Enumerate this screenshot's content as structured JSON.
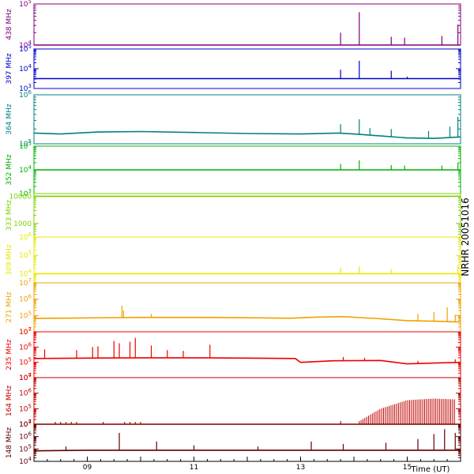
{
  "chart_data": {
    "type": "line",
    "side_label": "NRHR 20051016",
    "x_axis": {
      "label": "Time (UT)",
      "range_hours": [
        8.0,
        16.0
      ],
      "tick_labels": [
        "09",
        "11",
        "13",
        "15"
      ],
      "tick_hours": [
        9,
        11,
        13,
        15
      ],
      "grid": false
    },
    "panels": [
      {
        "freq_label": "438 MHz",
        "color": "#800080",
        "y_scale": "log",
        "ylim_exp": [
          4,
          5
        ],
        "tick_labels": [
          {
            "exp": 5,
            "text": "10^5"
          },
          {
            "exp": 4,
            "text": "10^4"
          }
        ],
        "baseline_exp": 4.0,
        "series": [
          [
            8.0,
            4.0
          ],
          [
            16.0,
            4.0
          ]
        ],
        "spikes": [
          [
            13.75,
            4.3
          ],
          [
            14.1,
            4.8
          ],
          [
            14.7,
            4.2
          ],
          [
            14.95,
            4.18
          ],
          [
            15.65,
            4.22
          ],
          [
            15.95,
            4.5
          ]
        ]
      },
      {
        "freq_label": "397 MHz",
        "color": "#0000cd",
        "y_scale": "log",
        "ylim_exp": [
          3,
          5
        ],
        "tick_labels": [
          {
            "exp": 5,
            "text": "10^5"
          },
          {
            "exp": 4,
            "text": "10^4"
          },
          {
            "exp": 3,
            "text": "10^3"
          }
        ],
        "baseline_exp": 3.5,
        "series": [
          [
            8.0,
            3.5
          ],
          [
            16.0,
            3.5
          ]
        ],
        "spikes": [
          [
            13.75,
            3.95
          ],
          [
            14.1,
            4.4
          ],
          [
            14.7,
            3.9
          ],
          [
            15.0,
            3.6
          ]
        ]
      },
      {
        "freq_label": "364 MHz",
        "color": "#008080",
        "y_scale": "log",
        "ylim_exp": [
          5,
          6
        ],
        "tick_labels": [
          {
            "exp": 6,
            "text": "10^6"
          },
          {
            "exp": 5,
            "text": "10^5"
          }
        ],
        "series": [
          [
            8.0,
            5.22
          ],
          [
            8.5,
            5.2
          ],
          [
            9.2,
            5.24
          ],
          [
            10.0,
            5.25
          ],
          [
            11.0,
            5.23
          ],
          [
            12.0,
            5.21
          ],
          [
            13.0,
            5.2
          ],
          [
            13.7,
            5.22
          ],
          [
            14.0,
            5.2
          ],
          [
            14.5,
            5.16
          ],
          [
            15.0,
            5.12
          ],
          [
            15.5,
            5.11
          ],
          [
            16.0,
            5.14
          ]
        ],
        "spikes": [
          [
            13.75,
            5.4
          ],
          [
            14.1,
            5.5
          ],
          [
            14.3,
            5.32
          ],
          [
            14.7,
            5.3
          ],
          [
            15.4,
            5.26
          ],
          [
            15.8,
            5.35
          ],
          [
            15.95,
            5.55
          ]
        ]
      },
      {
        "freq_label": "352 MHz",
        "color": "#00b000",
        "y_scale": "log",
        "ylim_exp": [
          3,
          5
        ],
        "tick_labels": [
          {
            "exp": 5,
            "text": "10^5"
          },
          {
            "exp": 4,
            "text": "10^4"
          },
          {
            "exp": 3,
            "text": "10^3"
          }
        ],
        "baseline_exp": 4.0,
        "series": [
          [
            8.0,
            4.0
          ],
          [
            16.0,
            4.0
          ]
        ],
        "spikes": [
          [
            13.75,
            4.25
          ],
          [
            14.1,
            4.4
          ],
          [
            14.7,
            4.2
          ],
          [
            14.95,
            4.18
          ],
          [
            15.65,
            4.18
          ],
          [
            15.95,
            4.3
          ]
        ]
      },
      {
        "freq_label": "333 MHz",
        "color": "#7fd000",
        "y_scale": "log",
        "ylim_exp": [
          2.5,
          4.1
        ],
        "tick_labels": [
          {
            "exp": 4,
            "text": "10000"
          },
          {
            "exp": 3,
            "text": "1000"
          }
        ],
        "baseline_exp": 4.0,
        "series": [
          [
            8.0,
            4.0
          ],
          [
            16.0,
            4.0
          ]
        ],
        "spikes": []
      },
      {
        "freq_label": "309 MHz",
        "color": "#e8e800",
        "y_scale": "log",
        "ylim_exp": [
          3.5,
          6
        ],
        "tick_labels": [
          {
            "exp": 6,
            "text": "10^6"
          },
          {
            "exp": 5,
            "text": "10^5"
          },
          {
            "exp": 4,
            "text": "10^4"
          }
        ],
        "baseline_exp": 4.0,
        "series": [
          [
            8.0,
            4.0
          ],
          [
            16.0,
            4.0
          ]
        ],
        "spikes": [
          [
            13.75,
            4.3
          ],
          [
            14.1,
            4.4
          ],
          [
            14.7,
            4.25
          ],
          [
            15.95,
            4.45
          ]
        ]
      },
      {
        "freq_label": "271 MHz",
        "color": "#f0a000",
        "y_scale": "log",
        "ylim_exp": [
          4,
          7
        ],
        "tick_labels": [
          {
            "exp": 7,
            "text": "10^7"
          },
          {
            "exp": 6,
            "text": "10^6"
          },
          {
            "exp": 5,
            "text": "10^5"
          },
          {
            "exp": 4,
            "text": "10^4"
          }
        ],
        "series": [
          [
            8.0,
            4.82
          ],
          [
            9.0,
            4.85
          ],
          [
            10.0,
            4.88
          ],
          [
            11.0,
            4.88
          ],
          [
            12.0,
            4.86
          ],
          [
            12.8,
            4.83
          ],
          [
            13.3,
            4.9
          ],
          [
            13.8,
            4.93
          ],
          [
            14.5,
            4.8
          ],
          [
            15.0,
            4.68
          ],
          [
            15.5,
            4.65
          ],
          [
            16.0,
            4.6
          ]
        ],
        "spikes": [
          [
            9.65,
            5.6
          ],
          [
            9.68,
            5.3
          ],
          [
            10.2,
            5.1
          ],
          [
            15.2,
            5.1
          ],
          [
            15.5,
            5.2
          ],
          [
            15.75,
            5.5
          ],
          [
            15.9,
            5.05
          ]
        ]
      },
      {
        "freq_label": "235 MHz",
        "color": "#ee0000",
        "y_scale": "log",
        "ylim_exp": [
          4,
          7
        ],
        "tick_labels": [
          {
            "exp": 7,
            "text": "10^7"
          },
          {
            "exp": 6,
            "text": "10^6"
          },
          {
            "exp": 5,
            "text": "10^5"
          },
          {
            "exp": 4,
            "text": "10^4"
          }
        ],
        "series": [
          [
            8.0,
            5.25
          ],
          [
            9.0,
            5.28
          ],
          [
            10.0,
            5.3
          ],
          [
            11.0,
            5.3
          ],
          [
            12.0,
            5.28
          ],
          [
            12.9,
            5.25
          ],
          [
            13.0,
            5.0
          ],
          [
            13.6,
            5.1
          ],
          [
            14.5,
            5.12
          ],
          [
            15.0,
            4.9
          ],
          [
            15.5,
            4.95
          ],
          [
            16.0,
            5.0
          ]
        ],
        "spikes": [
          [
            8.2,
            5.85
          ],
          [
            8.8,
            5.8
          ],
          [
            9.1,
            6.0
          ],
          [
            9.2,
            6.05
          ],
          [
            9.5,
            6.4
          ],
          [
            9.6,
            6.25
          ],
          [
            9.8,
            6.35
          ],
          [
            9.9,
            6.6
          ],
          [
            10.2,
            6.1
          ],
          [
            10.5,
            5.8
          ],
          [
            10.8,
            5.75
          ],
          [
            11.3,
            6.15
          ],
          [
            13.8,
            5.35
          ],
          [
            14.2,
            5.3
          ],
          [
            15.2,
            5.1
          ],
          [
            15.9,
            5.2
          ]
        ]
      },
      {
        "freq_label": "164 MHz",
        "color": "#c00000",
        "y_scale": "log",
        "ylim_exp": [
          4,
          7
        ],
        "tick_labels": [
          {
            "exp": 7,
            "text": "10^7"
          },
          {
            "exp": 6,
            "text": "10^6"
          },
          {
            "exp": 5,
            "text": "10^5"
          },
          {
            "exp": 4,
            "text": "10^4"
          }
        ],
        "baseline_exp": 4.0,
        "series": [
          [
            8.0,
            4.0
          ],
          [
            16.0,
            4.0
          ]
        ],
        "burst_envelope": [
          [
            14.1,
            4.2
          ],
          [
            14.5,
            5.0
          ],
          [
            15.0,
            5.55
          ],
          [
            15.5,
            5.65
          ],
          [
            15.9,
            5.6
          ]
        ],
        "spikes": [
          [
            8.4,
            4.15
          ],
          [
            8.5,
            4.15
          ],
          [
            8.6,
            4.15
          ],
          [
            8.7,
            4.15
          ],
          [
            8.8,
            4.15
          ],
          [
            9.3,
            4.15
          ],
          [
            9.7,
            4.15
          ],
          [
            9.8,
            4.15
          ],
          [
            9.9,
            4.15
          ],
          [
            10.0,
            4.15
          ],
          [
            13.75,
            4.2
          ]
        ]
      },
      {
        "freq_label": "148 MHz",
        "color": "#600000",
        "y_scale": "log",
        "ylim_exp": [
          4,
          7
        ],
        "tick_labels": [
          {
            "exp": 7,
            "text": "10^7"
          },
          {
            "exp": 6,
            "text": "10^6"
          },
          {
            "exp": 5,
            "text": "10^5"
          },
          {
            "exp": 4,
            "text": "10^4"
          }
        ],
        "series": [
          [
            8.0,
            4.85
          ],
          [
            9.0,
            4.9
          ],
          [
            10.0,
            4.9
          ],
          [
            11.0,
            4.9
          ],
          [
            12.0,
            4.9
          ],
          [
            13.0,
            4.9
          ],
          [
            14.0,
            4.9
          ],
          [
            15.0,
            4.9
          ],
          [
            16.0,
            4.9
          ]
        ],
        "spikes": [
          [
            8.6,
            5.2
          ],
          [
            9.6,
            6.3
          ],
          [
            10.3,
            5.6
          ],
          [
            11.0,
            5.3
          ],
          [
            12.2,
            5.2
          ],
          [
            13.2,
            5.6
          ],
          [
            13.8,
            5.4
          ],
          [
            14.6,
            5.5
          ],
          [
            15.2,
            5.8
          ],
          [
            15.5,
            6.2
          ],
          [
            15.7,
            6.6
          ],
          [
            15.9,
            6.3
          ]
        ]
      }
    ]
  }
}
